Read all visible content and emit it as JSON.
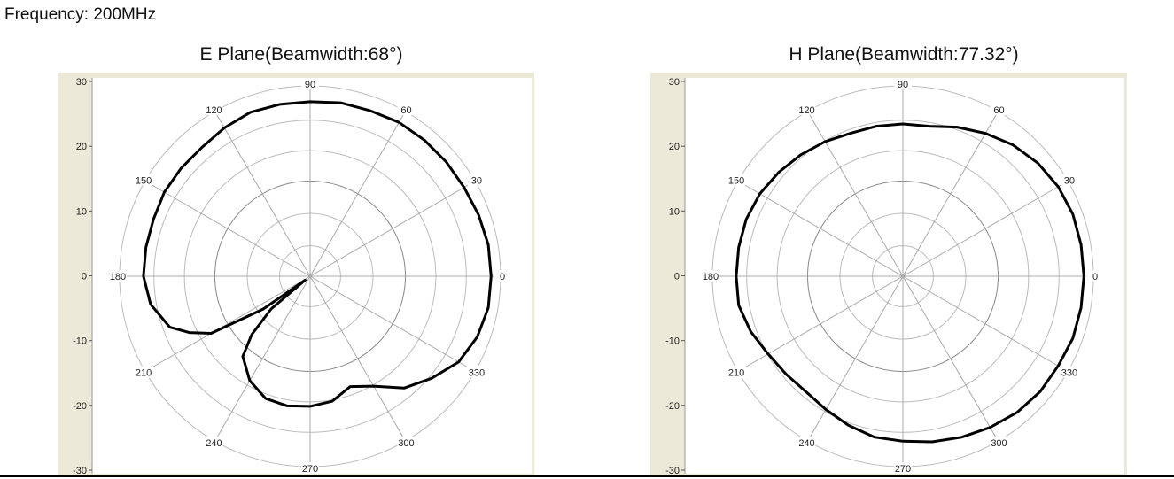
{
  "header": {
    "frequency": "Frequency: 200MHz"
  },
  "chart_data": [
    {
      "type": "polar-line",
      "title": "E Plane(Beamwidth:68°)",
      "r_range": [
        -30,
        30
      ],
      "r_ticks": [
        "30",
        "20",
        "10",
        "0",
        "-10",
        "-20",
        "-30"
      ],
      "angle_ticks": [
        "0",
        "30",
        "60",
        "90",
        "120",
        "150",
        "180",
        "210",
        "240",
        "270",
        "300",
        "330"
      ],
      "grid": true,
      "line_color": "#000000",
      "series": [
        {
          "angles": [
            0,
            10,
            20,
            30,
            40,
            50,
            60,
            70,
            80,
            90,
            100,
            110,
            120,
            130,
            140,
            150,
            160,
            170,
            180,
            190,
            200,
            205,
            210,
            215,
            218,
            220,
            225,
            230,
            240,
            250,
            260,
            270,
            280,
            290,
            300,
            310,
            320,
            330,
            340,
            350,
            360
          ],
          "values": [
            27,
            27,
            26.5,
            26,
            26,
            26,
            26,
            25.5,
            25.5,
            25,
            25,
            25,
            24,
            23,
            23,
            23,
            22.5,
            22.5,
            22.5,
            21,
            17,
            12,
            6,
            -12,
            -28,
            -14,
            -4,
            3,
            8,
            11,
            11.5,
            11,
            10,
            7,
            10,
            16,
            20,
            24,
            26,
            27,
            27
          ]
        }
      ]
    },
    {
      "type": "polar-line",
      "title": "H Plane(Beamwidth:77.32°)",
      "r_range": [
        -30,
        30
      ],
      "r_ticks": [
        "30",
        "20",
        "10",
        "0",
        "-10",
        "-20",
        "-30"
      ],
      "angle_ticks": [
        "0",
        "30",
        "60",
        "90",
        "120",
        "150",
        "180",
        "210",
        "240",
        "270",
        "300",
        "330"
      ],
      "grid": true,
      "line_color": "#000000",
      "series": [
        {
          "angles": [
            0,
            10,
            20,
            30,
            40,
            50,
            60,
            70,
            80,
            90,
            100,
            110,
            120,
            130,
            140,
            150,
            160,
            170,
            180,
            190,
            200,
            210,
            220,
            230,
            240,
            250,
            260,
            270,
            280,
            290,
            300,
            310,
            320,
            330,
            340,
            350,
            360
          ],
          "values": [
            27,
            27,
            27,
            26.5,
            25.5,
            24,
            22,
            20,
            18,
            18,
            18,
            18,
            19,
            20,
            21,
            22,
            22.5,
            22.5,
            22.5,
            22.5,
            21,
            19,
            18,
            17.5,
            18.5,
            20,
            21.5,
            22,
            23,
            24,
            25,
            26,
            26.5,
            26.5,
            27,
            27,
            27
          ]
        }
      ]
    }
  ]
}
